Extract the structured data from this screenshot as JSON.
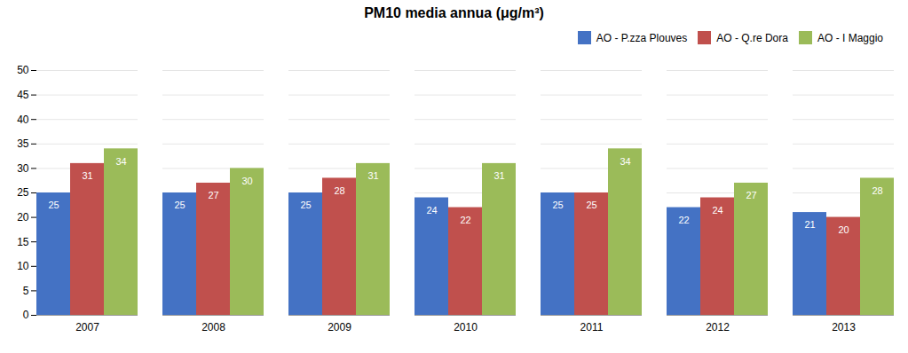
{
  "chart_data": {
    "type": "bar",
    "title": "PM10 media annua (μg/m³)",
    "categories": [
      "2007",
      "2008",
      "2009",
      "2010",
      "2011",
      "2012",
      "2013"
    ],
    "series": [
      {
        "name": "AO - P.zza Plouves",
        "color": "#4472C4",
        "values": [
          25,
          25,
          25,
          24,
          25,
          22,
          21
        ]
      },
      {
        "name": "AO - Q.re Dora",
        "color": "#C0504D",
        "values": [
          31,
          27,
          28,
          22,
          25,
          24,
          20
        ]
      },
      {
        "name": "AO - I Maggio",
        "color": "#9BBB59",
        "values": [
          34,
          30,
          31,
          31,
          34,
          27,
          28
        ]
      }
    ],
    "ylim": [
      0,
      50
    ],
    "yticks": [
      0,
      5,
      10,
      15,
      20,
      25,
      30,
      35,
      40,
      45,
      50
    ],
    "grid": true,
    "legend": "upper right",
    "data_labels": true
  }
}
